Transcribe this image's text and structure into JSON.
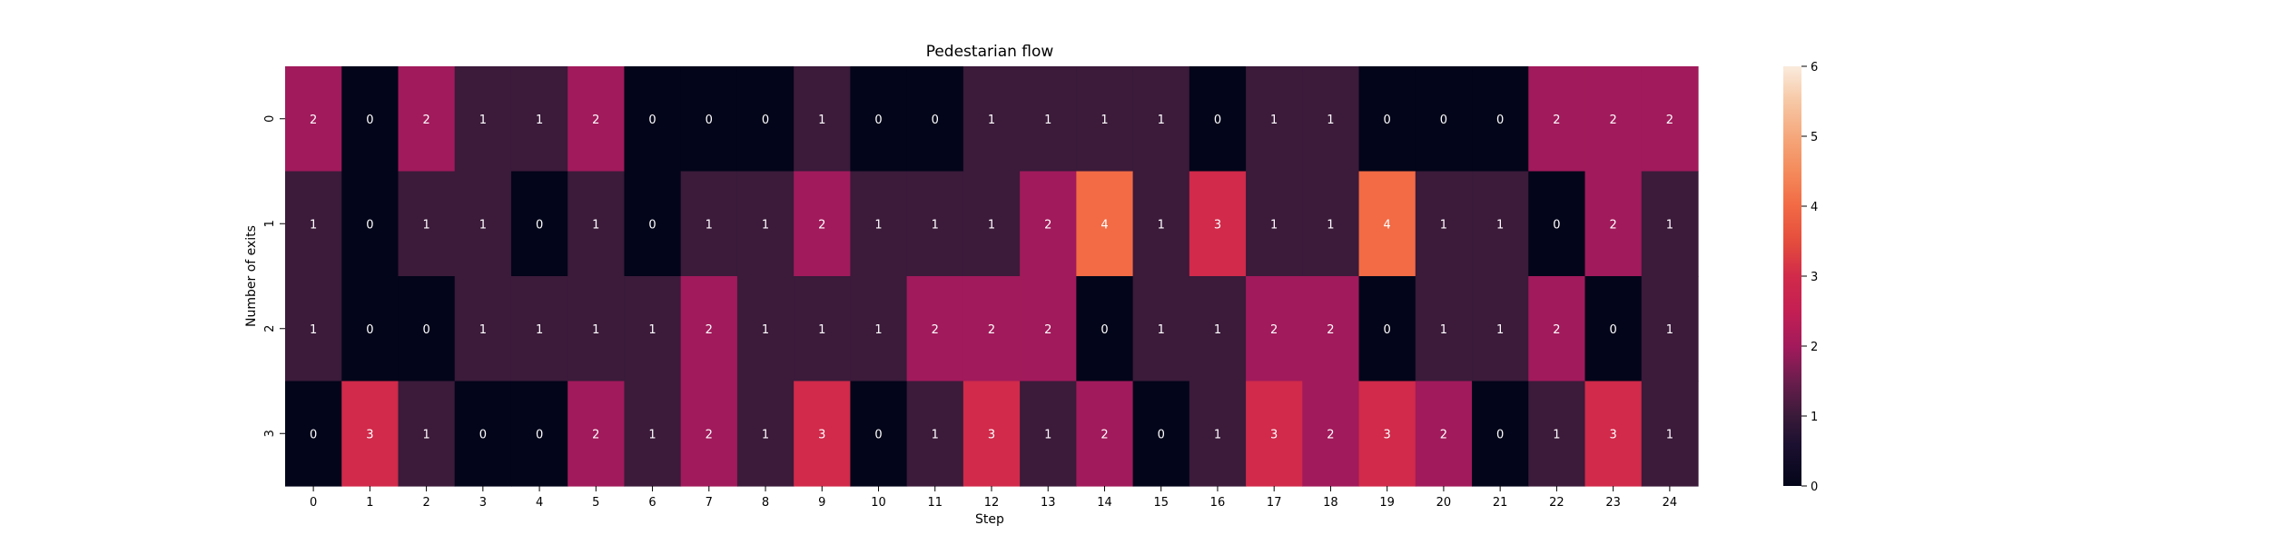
{
  "chart_data": {
    "type": "heatmap",
    "title": "Pedestarian flow",
    "xlabel": "Step",
    "ylabel": "Number of exits",
    "x_categories": [
      "0",
      "1",
      "2",
      "3",
      "4",
      "5",
      "6",
      "7",
      "8",
      "9",
      "10",
      "11",
      "12",
      "13",
      "14",
      "15",
      "16",
      "17",
      "18",
      "19",
      "20",
      "21",
      "22",
      "23",
      "24"
    ],
    "y_categories": [
      "0",
      "1",
      "2",
      "3"
    ],
    "values": [
      [
        2,
        0,
        2,
        1,
        1,
        2,
        0,
        0,
        0,
        1,
        0,
        0,
        1,
        1,
        1,
        1,
        0,
        1,
        1,
        0,
        0,
        0,
        2,
        2,
        2
      ],
      [
        1,
        0,
        1,
        1,
        0,
        1,
        0,
        1,
        1,
        2,
        1,
        1,
        1,
        2,
        4,
        1,
        3,
        1,
        1,
        4,
        1,
        1,
        0,
        2,
        1
      ],
      [
        1,
        0,
        0,
        1,
        1,
        1,
        1,
        2,
        1,
        1,
        1,
        2,
        2,
        2,
        0,
        1,
        1,
        2,
        2,
        0,
        1,
        1,
        2,
        0,
        1
      ],
      [
        0,
        3,
        1,
        0,
        0,
        2,
        1,
        2,
        1,
        3,
        0,
        1,
        3,
        1,
        2,
        0,
        1,
        3,
        2,
        3,
        2,
        0,
        1,
        3,
        1
      ]
    ],
    "colorbar": {
      "vmin": 0,
      "vmax": 6,
      "ticks": [
        "0",
        "1",
        "2",
        "3",
        "4",
        "5",
        "6"
      ],
      "colormap": "rocket",
      "colors": {
        "0": "#03051a",
        "1": "#3b1a3a",
        "2": "#a11a5b",
        "3": "#d12a4a",
        "4": "#f26b45",
        "5": "#f5a67a",
        "6": "#faebdd"
      }
    },
    "annotations": true,
    "grid": false
  }
}
